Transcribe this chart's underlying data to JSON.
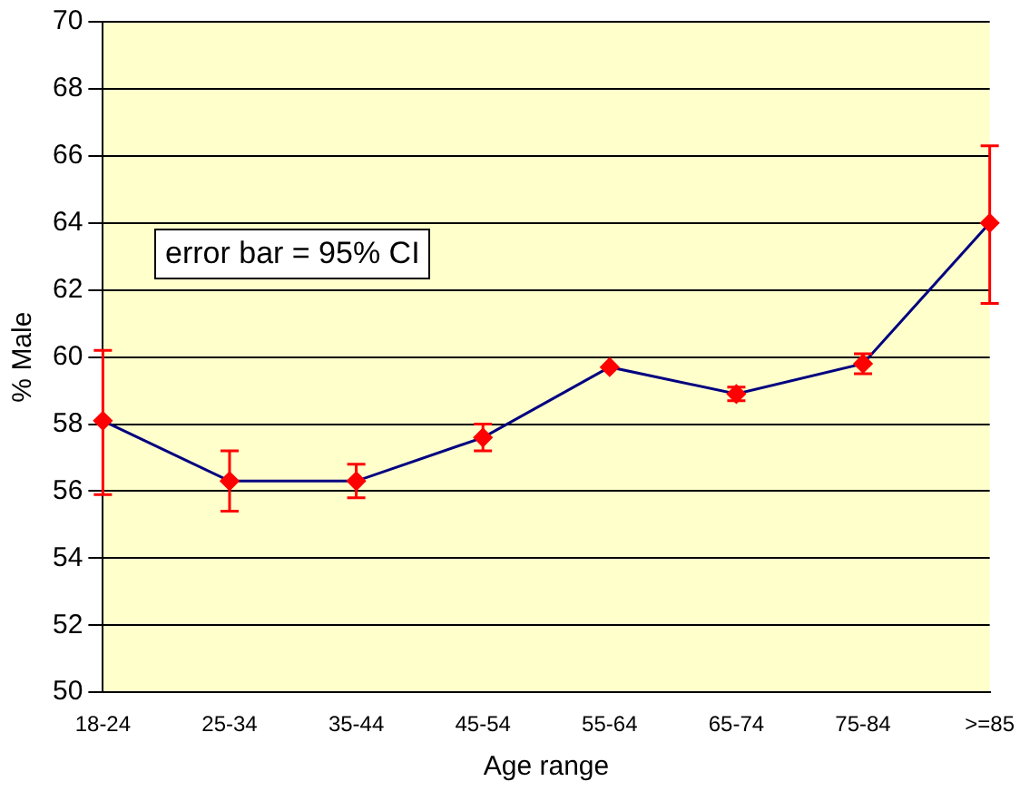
{
  "chart_data": {
    "type": "line",
    "xlabel": "Age range",
    "ylabel": "% Male",
    "categories": [
      "18-24",
      "25-34",
      "35-44",
      "45-54",
      "55-64",
      "65-74",
      "75-84",
      ">=85"
    ],
    "series": [
      {
        "color": "#000080",
        "values": [
          58.1,
          56.3,
          56.3,
          57.6,
          59.7,
          58.9,
          59.8,
          64.0
        ],
        "errors": [
          [
            55.9,
            60.2
          ],
          [
            55.4,
            57.2
          ],
          [
            55.8,
            56.8
          ],
          [
            57.2,
            58.0
          ],
          null,
          [
            58.7,
            59.1
          ],
          [
            59.5,
            60.1
          ],
          [
            61.6,
            66.3
          ]
        ]
      }
    ],
    "ylim": [
      50,
      70
    ],
    "yticks": [
      50,
      52,
      54,
      56,
      58,
      60,
      62,
      64,
      66,
      68,
      70
    ],
    "grid": "y",
    "marker": "diamond",
    "legend": false,
    "annotations": [
      "error bar = 95% CI"
    ]
  }
}
